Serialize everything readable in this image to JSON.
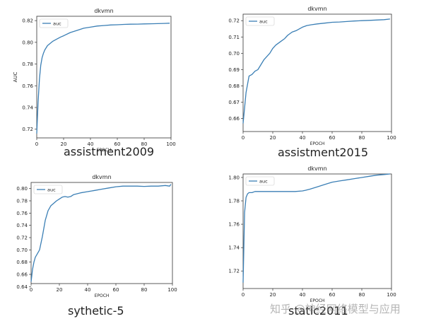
{
  "chart_data": [
    {
      "type": "line",
      "title": "dkvmn",
      "xlabel": "EPOCH",
      "ylabel": "AUC",
      "caption": "assistment2009",
      "xlim": [
        0,
        100
      ],
      "ylim": [
        0.712,
        0.824
      ],
      "xticks": [
        0,
        20,
        40,
        60,
        80,
        100
      ],
      "yticks": [
        0.72,
        0.74,
        0.76,
        0.78,
        0.8,
        0.82
      ],
      "yticklabels": [
        "0.72",
        "0.74",
        "0.76",
        "0.78",
        "0.80",
        "0.82"
      ],
      "legend": "top-left",
      "series": [
        {
          "name": "auc",
          "color": "#3b7fb5",
          "x": [
            0,
            1,
            2,
            3,
            4,
            5,
            6,
            8,
            10,
            12,
            15,
            18,
            20,
            25,
            30,
            35,
            40,
            45,
            50,
            55,
            60,
            65,
            70,
            75,
            80,
            85,
            90,
            95,
            99
          ],
          "y": [
            0.716,
            0.745,
            0.766,
            0.779,
            0.786,
            0.79,
            0.793,
            0.797,
            0.799,
            0.801,
            0.803,
            0.805,
            0.806,
            0.809,
            0.811,
            0.813,
            0.814,
            0.815,
            0.8155,
            0.816,
            0.8162,
            0.8165,
            0.8167,
            0.8168,
            0.817,
            0.8171,
            0.8172,
            0.8174,
            0.8176
          ]
        }
      ]
    },
    {
      "type": "line",
      "title": "dkvmn",
      "xlabel": "EPOCH",
      "ylabel": "",
      "caption": "assistment2015",
      "xlim": [
        0,
        100
      ],
      "ylim": [
        0.652,
        0.724
      ],
      "xticks": [
        0,
        20,
        40,
        60,
        80,
        100
      ],
      "yticks": [
        0.66,
        0.67,
        0.68,
        0.69,
        0.7,
        0.71,
        0.72
      ],
      "yticklabels": [
        "0.66",
        "0.67",
        "0.68",
        "0.69",
        "0.70",
        "0.71",
        "0.72"
      ],
      "legend": "top-left",
      "series": [
        {
          "name": "auc",
          "color": "#3b7fb5",
          "x": [
            0,
            2,
            4,
            6,
            8,
            10,
            12,
            14,
            16,
            18,
            20,
            22,
            25,
            28,
            30,
            33,
            36,
            40,
            43,
            46,
            50,
            55,
            60,
            65,
            70,
            75,
            80,
            85,
            90,
            95,
            99
          ],
          "y": [
            0.657,
            0.676,
            0.686,
            0.687,
            0.689,
            0.69,
            0.693,
            0.696,
            0.698,
            0.7,
            0.703,
            0.705,
            0.707,
            0.709,
            0.711,
            0.713,
            0.714,
            0.716,
            0.717,
            0.7175,
            0.718,
            0.7185,
            0.719,
            0.7192,
            0.7195,
            0.7198,
            0.72,
            0.7202,
            0.7204,
            0.7206,
            0.721
          ]
        }
      ]
    },
    {
      "type": "line",
      "title": "dkvmn",
      "xlabel": "EPOCH",
      "ylabel": "",
      "caption": "sythetic-5",
      "xlim": [
        0,
        100
      ],
      "ylim": [
        0.645,
        0.81
      ],
      "xticks": [
        0,
        20,
        40,
        60,
        80,
        100
      ],
      "yticks": [
        0.64,
        0.66,
        0.68,
        0.7,
        0.72,
        0.74,
        0.76,
        0.78,
        0.8
      ],
      "yticklabels": [
        "0.64",
        "0.66",
        "0.68",
        "0.70",
        "0.72",
        "0.74",
        "0.76",
        "0.78",
        "0.80"
      ],
      "legend": "top-left",
      "series": [
        {
          "name": "auc",
          "color": "#3b7fb5",
          "x": [
            0,
            1,
            2,
            3,
            4,
            6,
            8,
            10,
            12,
            14,
            16,
            18,
            20,
            22,
            24,
            26,
            28,
            30,
            35,
            40,
            45,
            50,
            55,
            60,
            65,
            70,
            75,
            80,
            85,
            90,
            95,
            98,
            99
          ],
          "y": [
            0.648,
            0.668,
            0.68,
            0.688,
            0.692,
            0.7,
            0.722,
            0.748,
            0.764,
            0.772,
            0.776,
            0.78,
            0.783,
            0.786,
            0.787,
            0.786,
            0.787,
            0.79,
            0.793,
            0.795,
            0.797,
            0.799,
            0.801,
            0.803,
            0.804,
            0.804,
            0.804,
            0.8035,
            0.804,
            0.804,
            0.805,
            0.804,
            0.807
          ]
        }
      ]
    },
    {
      "type": "line",
      "title": "dkvmn",
      "xlabel": "EPOCH",
      "ylabel": "",
      "caption": "static2011",
      "xlim": [
        0,
        100
      ],
      "ylim": [
        1.705,
        1.803
      ],
      "xticks": [
        0,
        20,
        40,
        60,
        80,
        100
      ],
      "yticks": [
        1.72,
        1.74,
        1.76,
        1.78,
        1.8
      ],
      "yticklabels": [
        "1.72",
        "1.74",
        "1.76",
        "1.78",
        "1.80"
      ],
      "legend": "top-left",
      "series": [
        {
          "name": "auc",
          "color": "#3b7fb5",
          "x": [
            0,
            1,
            2,
            3,
            4,
            6,
            8,
            10,
            15,
            20,
            25,
            30,
            35,
            40,
            42,
            45,
            50,
            55,
            60,
            65,
            70,
            75,
            80,
            85,
            90,
            95,
            99
          ],
          "y": [
            1.71,
            1.77,
            1.783,
            1.786,
            1.787,
            1.787,
            1.788,
            1.788,
            1.788,
            1.788,
            1.788,
            1.788,
            1.788,
            1.7885,
            1.789,
            1.79,
            1.792,
            1.794,
            1.796,
            1.797,
            1.798,
            1.799,
            1.8,
            1.801,
            1.802,
            1.8025,
            1.803
          ]
        }
      ]
    }
  ],
  "watermark": "知乎 @神经网络模型与应用"
}
